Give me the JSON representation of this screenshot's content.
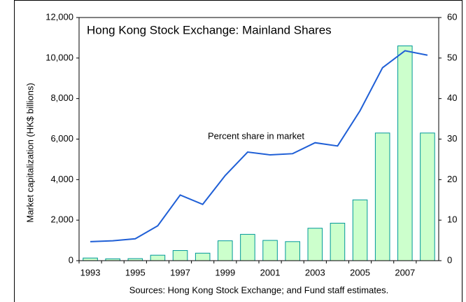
{
  "chart_data": {
    "type": "bar-line",
    "title": "Hong Kong Stock Exchange: Mainland Shares",
    "y_label": "Market capitalization (HK$ billions)",
    "source": "Sources: Hong Kong Stock Exchange; and Fund staff estimates.",
    "categories": [
      "1993",
      null,
      "1995",
      null,
      "1997",
      null,
      "1999",
      null,
      "2001",
      null,
      "2003",
      null,
      "2005",
      null,
      "2007",
      null
    ],
    "series": [
      {
        "type": "bar",
        "color": "#ccffcc",
        "edge": "#009999",
        "values": [
          130,
          90,
          100,
          270,
          500,
          370,
          980,
          1300,
          1000,
          940,
          1600,
          1850,
          3000,
          6300,
          10600,
          6300
        ]
      },
      {
        "type": "line",
        "axis": "y2",
        "name": "Percent share in market",
        "color": "#1f5fd6",
        "values": [
          4.7,
          4.9,
          5.4,
          8.6,
          16.2,
          13.9,
          21.0,
          26.8,
          26.1,
          26.4,
          29.1,
          28.3,
          37.0,
          47.6,
          51.8,
          50.7
        ]
      }
    ],
    "ylim": [
      0,
      12000
    ],
    "yticks": [
      {
        "value": 0,
        "label": "0"
      },
      {
        "value": 2000,
        "label": "2,000"
      },
      {
        "value": 4000,
        "label": "4,000"
      },
      {
        "value": 6000,
        "label": "6,000"
      },
      {
        "value": 8000,
        "label": "8,000"
      },
      {
        "value": 10000,
        "label": "10,000"
      },
      {
        "value": 12000,
        "label": "12,000"
      }
    ],
    "y2lim": [
      0,
      60
    ],
    "y2ticks": [
      0,
      10,
      20,
      30,
      40,
      50,
      60
    ]
  }
}
